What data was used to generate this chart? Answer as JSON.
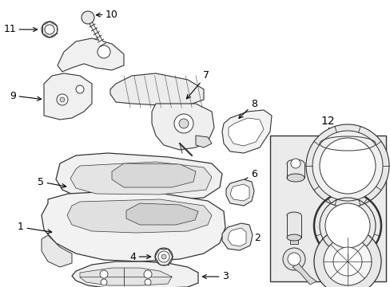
{
  "bg_color": "#ffffff",
  "line_color": "#333333",
  "fill_light": "#f8f8f8",
  "fill_med": "#e8e8e8",
  "fill_dark": "#d0d0d0",
  "box12_bg": "#ebebeb",
  "font_size": 9,
  "figsize": [
    4.89,
    3.6
  ],
  "dpi": 100
}
